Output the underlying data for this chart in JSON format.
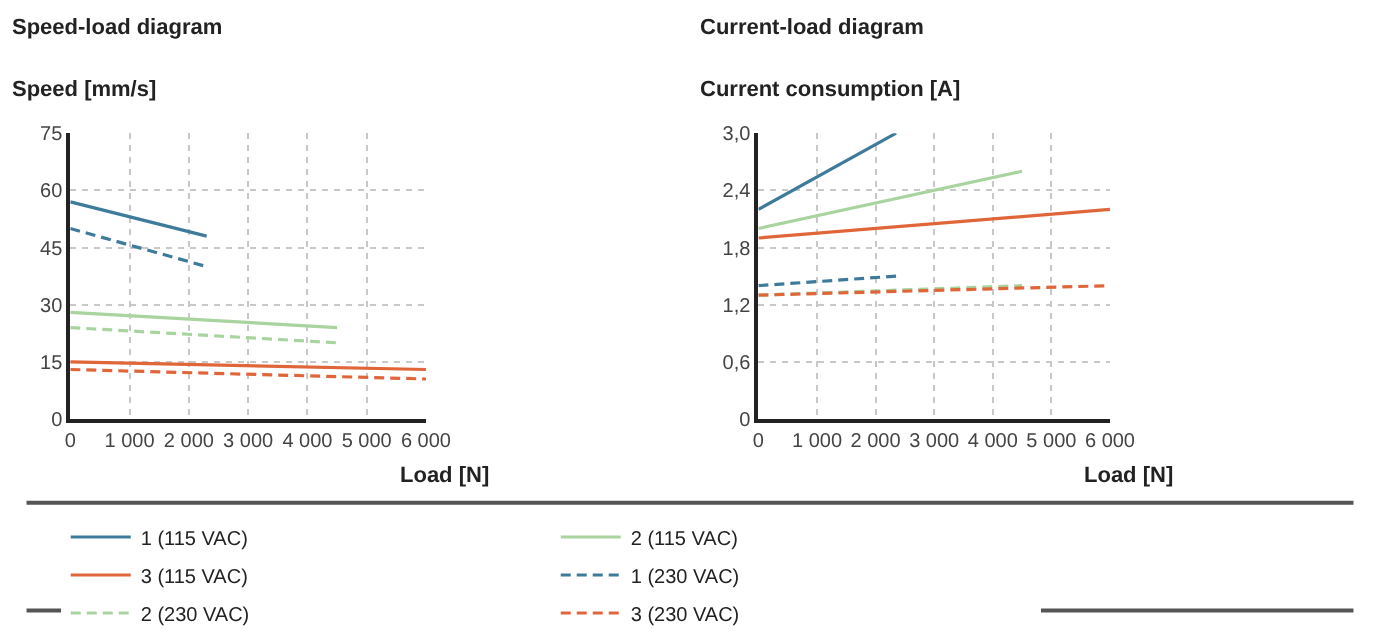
{
  "chart_data": [
    {
      "type": "line",
      "title": "Speed-load diagram",
      "ylabel": "Speed [mm/s]",
      "xlabel": "Load [N]",
      "xlim": [
        0,
        6000
      ],
      "xticks": [
        0,
        {
          "value": 1000,
          "label": "1 000"
        },
        {
          "value": 2000,
          "label": "2 000"
        },
        {
          "value": 3000,
          "label": "3 000"
        },
        {
          "value": 4000,
          "label": "4 000"
        },
        {
          "value": 5000,
          "label": "5 000"
        },
        {
          "value": 6000,
          "label": "6 000"
        }
      ],
      "ylim": [
        0,
        75
      ],
      "yticks": [
        0,
        15,
        30,
        45,
        60,
        75
      ],
      "grid": true,
      "legend": "bottom",
      "series": [
        {
          "name": "1 (115 VAC)",
          "color": "#3e7a9a",
          "line_style": "solid",
          "x": [
            0,
            2300
          ],
          "values": [
            57,
            48
          ]
        },
        {
          "name": "2 (115 VAC)",
          "color": "#a9d4a0",
          "line_style": "solid",
          "x": [
            0,
            4500
          ],
          "values": [
            28,
            24
          ]
        },
        {
          "name": "3 (115 VAC)",
          "color": "#e0663a",
          "line_style": "solid",
          "x": [
            0,
            6000
          ],
          "values": [
            15,
            13
          ]
        },
        {
          "name": "1 (230 VAC)",
          "color": "#3e7a9a",
          "line_style": "dashed",
          "x": [
            0,
            2300
          ],
          "values": [
            50,
            40
          ]
        },
        {
          "name": "2 (230 VAC)",
          "color": "#a9d4a0",
          "line_style": "dashed",
          "x": [
            0,
            4500
          ],
          "values": [
            24,
            20
          ]
        },
        {
          "name": "3 (230 VAC)",
          "color": "#e0663a",
          "line_style": "dashed",
          "x": [
            0,
            6000
          ],
          "values": [
            13,
            10.5
          ]
        }
      ]
    },
    {
      "type": "line",
      "title": "Current-load diagram",
      "ylabel": "Current consumption [A]",
      "xlabel": "Load [N]",
      "xlim": [
        0,
        6000
      ],
      "xticks": [
        0,
        {
          "value": 1000,
          "label": "1 000"
        },
        {
          "value": 2000,
          "label": "2 000"
        },
        {
          "value": 3000,
          "label": "3 000"
        },
        {
          "value": 4000,
          "label": "4 000"
        },
        {
          "value": 5000,
          "label": "5 000"
        },
        {
          "value": 6000,
          "label": "6 000"
        }
      ],
      "ylim": [
        0,
        3.0
      ],
      "yticks": [
        0,
        {
          "value": 0.6,
          "label": "0,6"
        },
        {
          "value": 1.2,
          "label": "1,2"
        },
        {
          "value": 1.8,
          "label": "1,8"
        },
        {
          "value": 2.4,
          "label": "2,4"
        },
        {
          "value": 3.0,
          "label": "3,0"
        }
      ],
      "grid": true,
      "legend": "bottom",
      "series": [
        {
          "name": "1 (115 VAC)",
          "color": "#3e7a9a",
          "line_style": "solid",
          "x": [
            0,
            2350
          ],
          "values": [
            2.2,
            3.0
          ]
        },
        {
          "name": "2 (115 VAC)",
          "color": "#a9d4a0",
          "line_style": "solid",
          "x": [
            0,
            4500
          ],
          "values": [
            2.0,
            2.6
          ]
        },
        {
          "name": "3 (115 VAC)",
          "color": "#e0663a",
          "line_style": "solid",
          "x": [
            0,
            6000
          ],
          "values": [
            1.9,
            2.2
          ]
        },
        {
          "name": "1 (230 VAC)",
          "color": "#3e7a9a",
          "line_style": "dashed",
          "x": [
            0,
            2350
          ],
          "values": [
            1.4,
            1.5
          ]
        },
        {
          "name": "2 (230 VAC)",
          "color": "#a9d4a0",
          "line_style": "dashed",
          "x": [
            0,
            4500
          ],
          "values": [
            1.3,
            1.4
          ]
        },
        {
          "name": "3 (230 VAC)",
          "color": "#e0663a",
          "line_style": "dashed",
          "x": [
            0,
            6000
          ],
          "values": [
            1.3,
            1.4
          ]
        }
      ]
    }
  ]
}
